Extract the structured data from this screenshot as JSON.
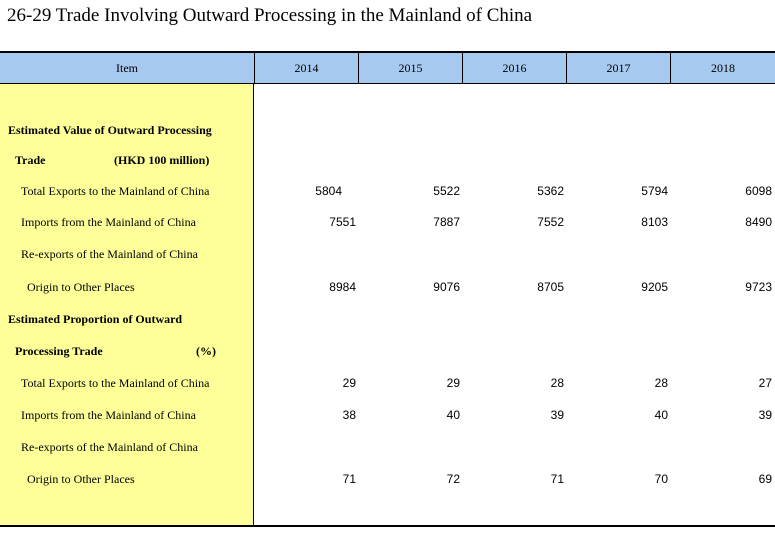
{
  "title": "26-29  Trade Involving Outward Processing in the Mainland of China",
  "header": {
    "item_label": "Item",
    "years": [
      "2014",
      "2015",
      "2016",
      "2017",
      "2018"
    ]
  },
  "sections": [
    {
      "title_line1": "Estimated Value of Outward Processing",
      "title_line2": "Trade",
      "unit": "(HKD 100 million)",
      "rows": [
        {
          "label": "Total Exports to the Mainland of China",
          "values": [
            "5804",
            "5522",
            "5362",
            "5794",
            "6098"
          ]
        },
        {
          "label": "Imports from the Mainland of China",
          "values": [
            "7551",
            "7887",
            "7552",
            "8103",
            "8490"
          ]
        },
        {
          "label": "Re-exports of the Mainland of China",
          "label2": "Origin to Other Places",
          "values": [
            "8984",
            "9076",
            "8705",
            "9205",
            "9723"
          ]
        }
      ]
    },
    {
      "title_line1": "Estimated Proportion of Outward",
      "title_line2": "Processing Trade",
      "unit": "(%)",
      "rows": [
        {
          "label": "Total Exports to the Mainland of China",
          "values": [
            "29",
            "29",
            "28",
            "28",
            "27"
          ]
        },
        {
          "label": "Imports from the Mainland of China",
          "values": [
            "38",
            "40",
            "39",
            "40",
            "39"
          ]
        },
        {
          "label": "Re-exports of the Mainland of China",
          "label2": "Origin to Other Places",
          "values": [
            "71",
            "72",
            "71",
            "70",
            "69"
          ]
        }
      ]
    }
  ]
}
